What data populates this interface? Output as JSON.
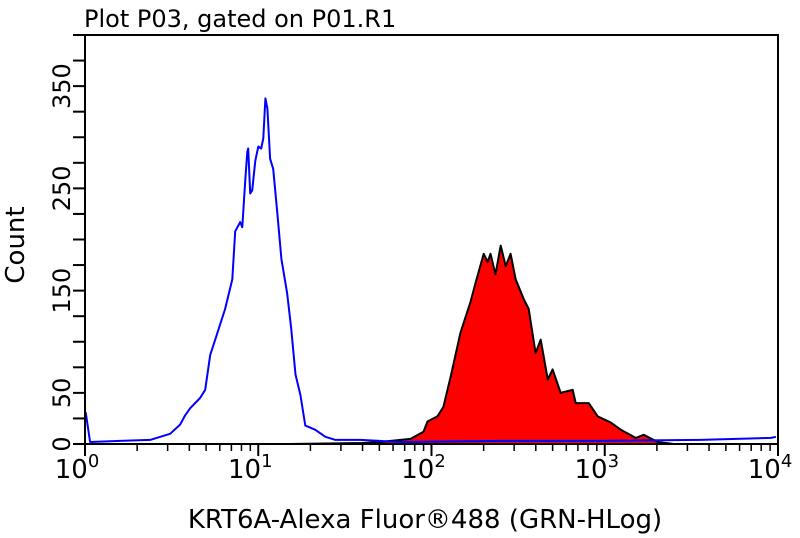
{
  "chart_data": {
    "type": "area",
    "title": "Plot P03, gated on P01.R1",
    "xlabel": "KRT6A-Alexa Fluor®488 (GRN-HLog)",
    "ylabel": "Count",
    "x_scale": "log",
    "xlim": [
      1,
      10000
    ],
    "ylim": [
      0,
      400
    ],
    "x_ticks": [
      {
        "base": "10",
        "exp": "0",
        "value": 1
      },
      {
        "base": "10",
        "exp": "1",
        "value": 10
      },
      {
        "base": "10",
        "exp": "2",
        "value": 100
      },
      {
        "base": "10",
        "exp": "3",
        "value": 1000
      },
      {
        "base": "10",
        "exp": "4",
        "value": 10000
      }
    ],
    "y_tick_labels": [
      {
        "label": "0",
        "value": 0
      },
      {
        "label": "50",
        "value": 50
      },
      {
        "label": "150",
        "value": 150
      },
      {
        "label": "250",
        "value": 250
      },
      {
        "label": "350",
        "value": 350
      }
    ],
    "y_minor_step": 25,
    "grid": false,
    "series": [
      {
        "color": "#0000ff",
        "fill": "none",
        "points": [
          [
            1.01,
            31
          ],
          [
            1.07,
            2
          ],
          [
            1.59,
            3
          ],
          [
            2.38,
            4
          ],
          [
            2.72,
            7
          ],
          [
            3.1,
            10
          ],
          [
            3.54,
            19
          ],
          [
            3.78,
            28
          ],
          [
            4.05,
            35
          ],
          [
            4.62,
            45
          ],
          [
            4.94,
            53
          ],
          [
            5.28,
            87
          ],
          [
            5.64,
            102
          ],
          [
            6.44,
            132
          ],
          [
            7.08,
            161
          ],
          [
            7.36,
            208
          ],
          [
            7.87,
            217
          ],
          [
            8.09,
            212
          ],
          [
            8.41,
            257
          ],
          [
            8.64,
            286
          ],
          [
            8.75,
            289
          ],
          [
            8.99,
            245
          ],
          [
            9.23,
            248
          ],
          [
            9.61,
            277
          ],
          [
            10.0,
            291
          ],
          [
            10.4,
            289
          ],
          [
            10.7,
            299
          ],
          [
            11.0,
            338
          ],
          [
            11.3,
            328
          ],
          [
            11.7,
            279
          ],
          [
            12.2,
            269
          ],
          [
            12.9,
            225
          ],
          [
            13.6,
            181
          ],
          [
            14.7,
            147
          ],
          [
            15.5,
            113
          ],
          [
            16.4,
            68
          ],
          [
            17.5,
            48
          ],
          [
            18.7,
            18
          ],
          [
            21.3,
            14
          ],
          [
            24.4,
            7
          ],
          [
            27.9,
            4
          ],
          [
            38.9,
            4
          ],
          [
            66.2,
            2
          ],
          [
            251,
            3
          ],
          [
            948,
            3
          ],
          [
            3589,
            4
          ],
          [
            9120,
            6
          ],
          [
            9730,
            7
          ]
        ]
      },
      {
        "color": "#000000",
        "fill": "#ff0000",
        "points": [
          [
            15,
            0
          ],
          [
            40,
            1
          ],
          [
            50.7,
            2
          ],
          [
            75.6,
            5
          ],
          [
            89.9,
            12
          ],
          [
            94.8,
            22
          ],
          [
            108,
            27
          ],
          [
            117,
            36
          ],
          [
            129,
            66
          ],
          [
            147,
            109
          ],
          [
            168,
            139
          ],
          [
            180,
            158
          ],
          [
            200,
            186
          ],
          [
            211,
            178
          ],
          [
            219,
            186
          ],
          [
            234,
            166
          ],
          [
            251,
            194
          ],
          [
            268,
            174
          ],
          [
            286,
            186
          ],
          [
            306,
            161
          ],
          [
            340,
            142
          ],
          [
            364,
            132
          ],
          [
            399,
            89
          ],
          [
            427,
            102
          ],
          [
            469,
            63
          ],
          [
            500,
            73
          ],
          [
            557,
            50
          ],
          [
            653,
            53
          ],
          [
            680,
            40
          ],
          [
            808,
            40
          ],
          [
            912,
            27
          ],
          [
            1084,
            21
          ],
          [
            1237,
            14
          ],
          [
            1510,
            6
          ],
          [
            1679,
            9
          ],
          [
            2023,
            2
          ],
          [
            2500,
            0
          ]
        ]
      }
    ]
  }
}
